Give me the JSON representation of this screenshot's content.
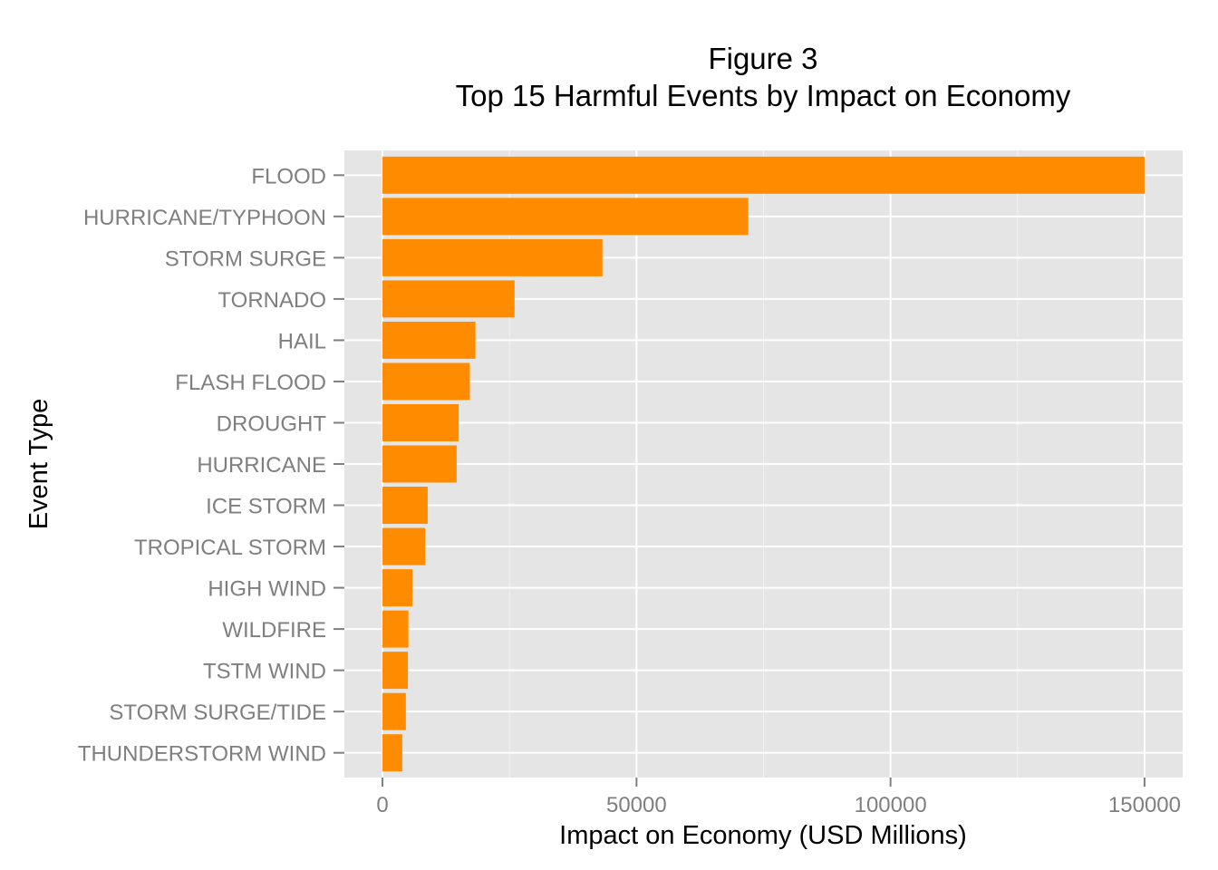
{
  "chart_data": {
    "type": "bar",
    "orientation": "horizontal",
    "title_line1": "Figure 3",
    "title_line2": "Top 15 Harmful Events by Impact on Economy",
    "xlabel": "Impact on Economy (USD Millions)",
    "ylabel": "Event Type",
    "xlim": [
      -7500,
      157500
    ],
    "x_ticks": [
      0,
      50000,
      100000,
      150000
    ],
    "x_tick_labels": [
      "0",
      "50000",
      "100000",
      "150000"
    ],
    "grid": true,
    "bar_color": "#ff8c00",
    "panel_color": "#e5e5e5",
    "grid_color": "#ffffff",
    "categories": [
      "FLOOD",
      "HURRICANE/TYPHOON",
      "STORM SURGE",
      "TORNADO",
      "HAIL",
      "FLASH FLOOD",
      "DROUGHT",
      "HURRICANE",
      "ICE STORM",
      "TROPICAL STORM",
      "HIGH WIND",
      "WILDFIRE",
      "TSTM WIND",
      "STORM SURGE/TIDE",
      "THUNDERSTORM WIND"
    ],
    "values": [
      150000,
      72000,
      43300,
      26000,
      18300,
      17200,
      15000,
      14600,
      8900,
      8400,
      5900,
      5100,
      5000,
      4600,
      3900
    ]
  }
}
